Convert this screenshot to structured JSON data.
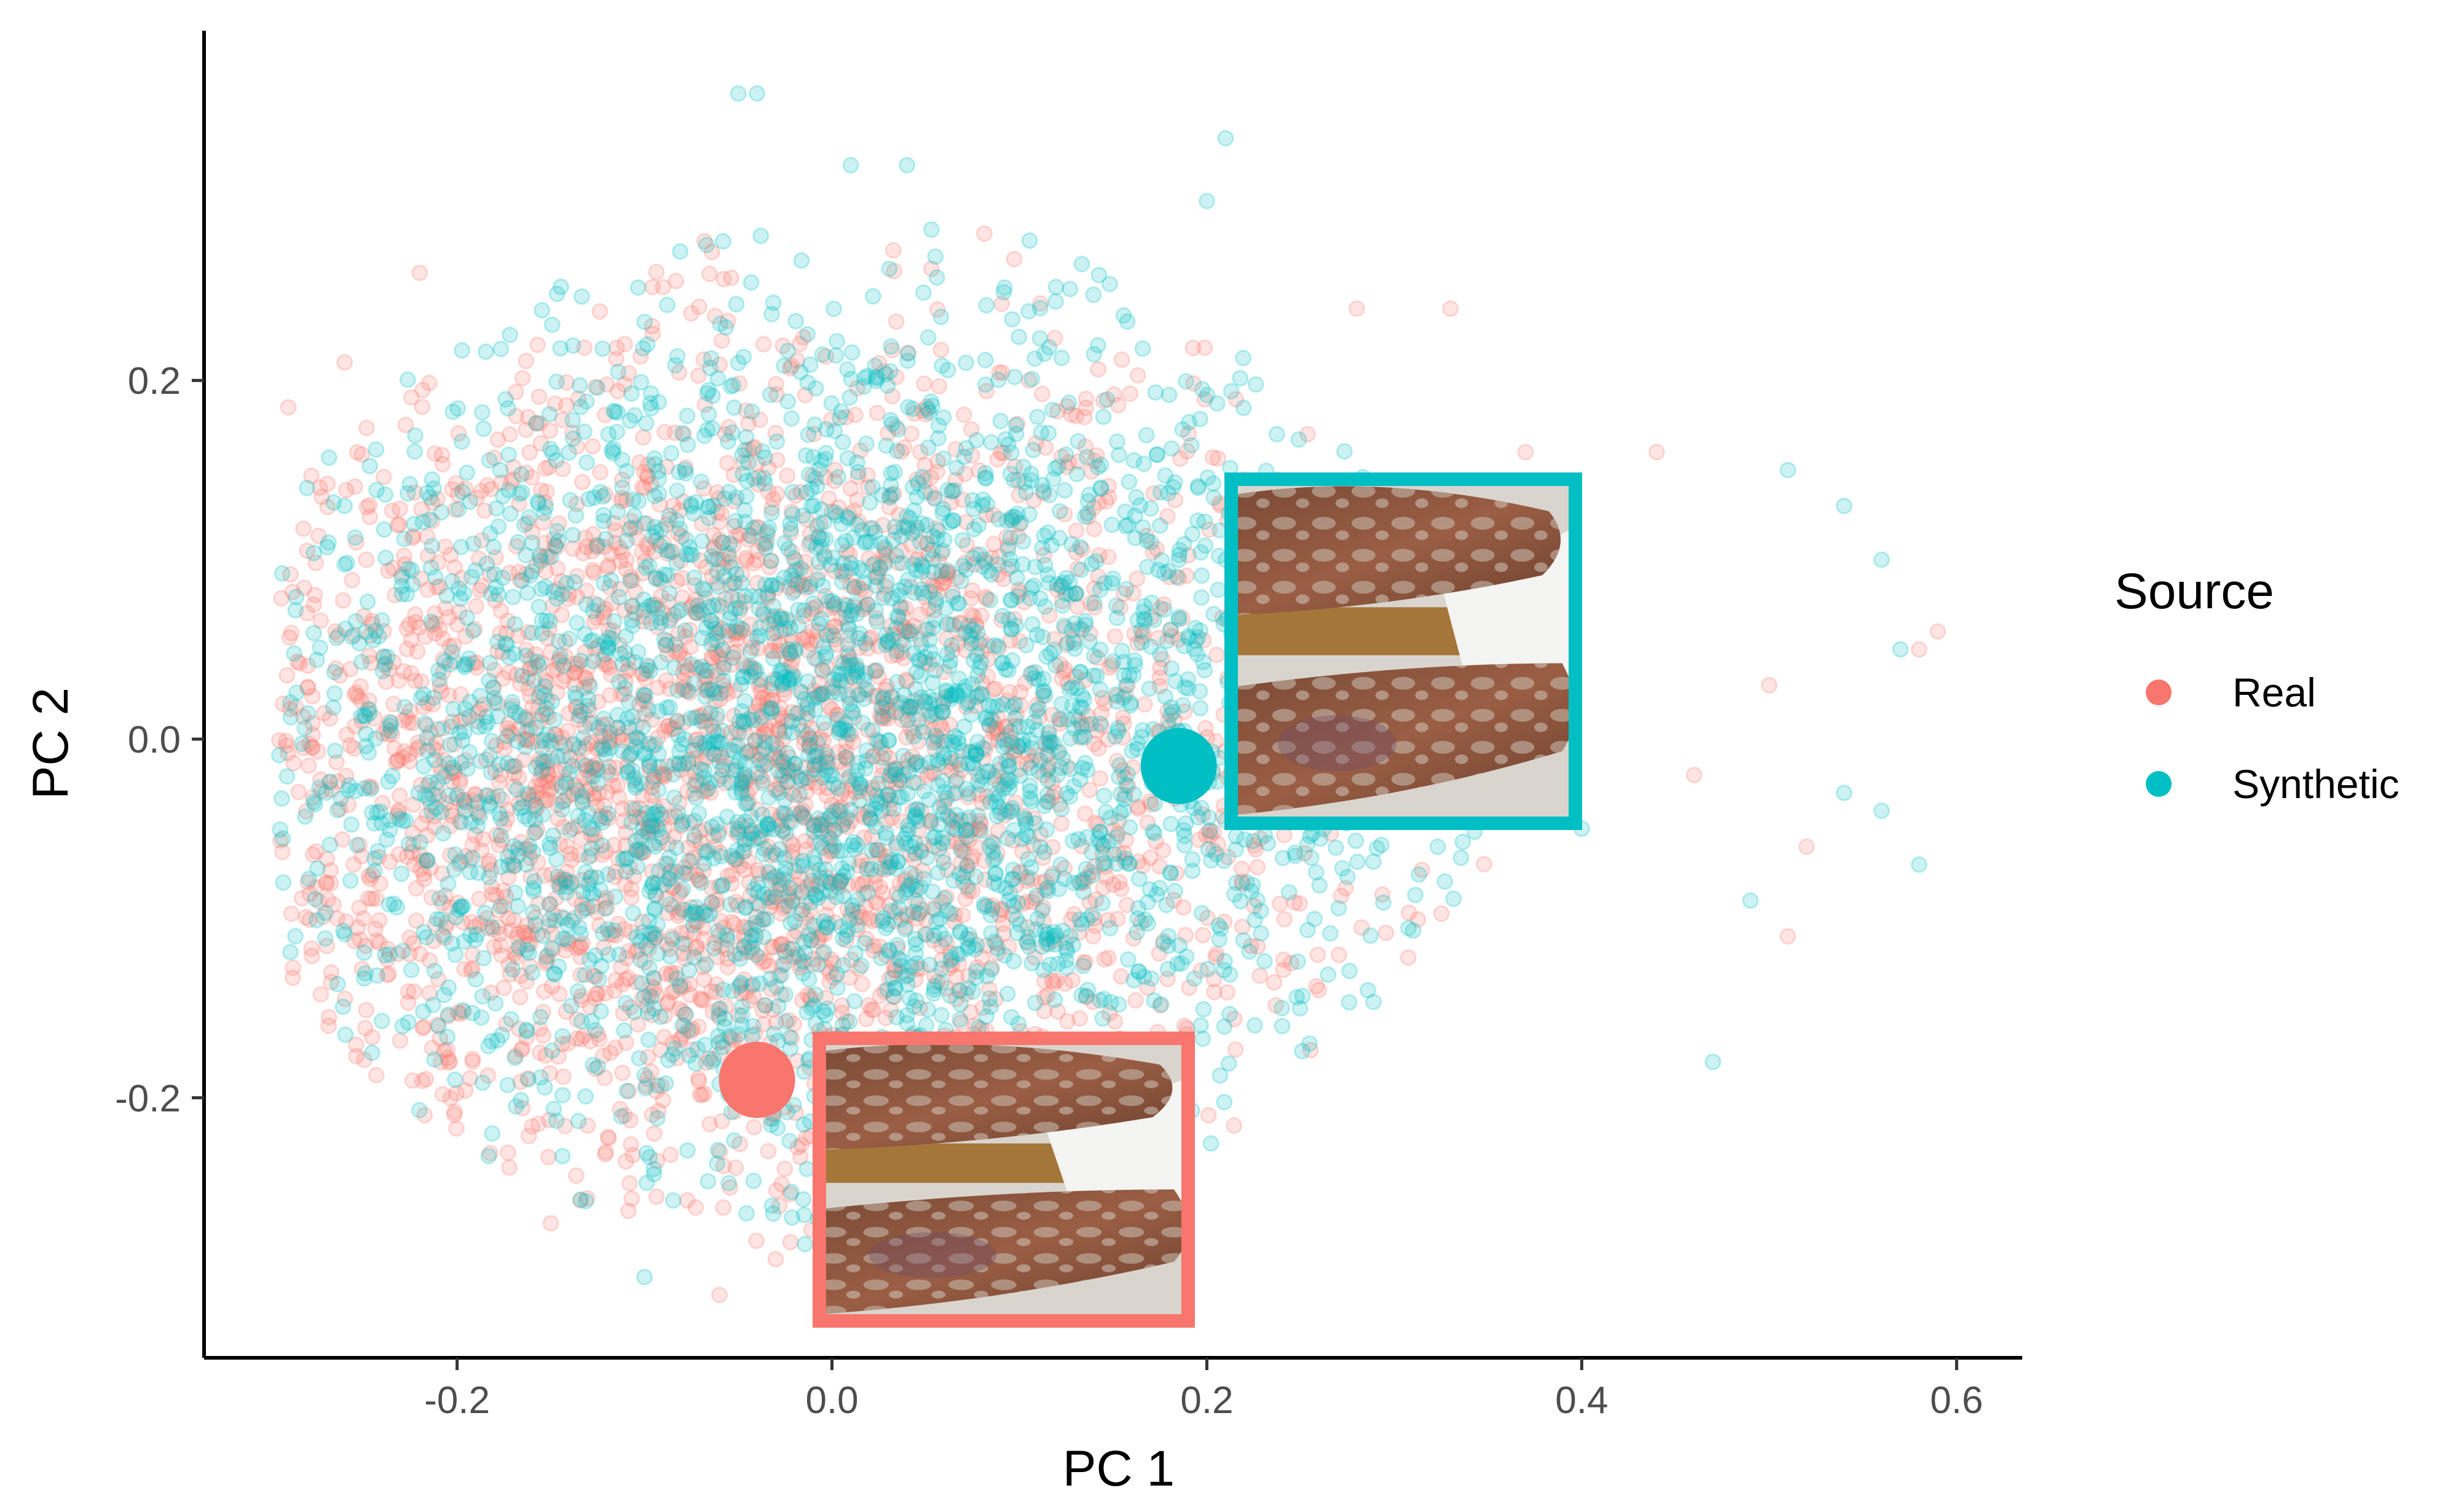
{
  "chart_data": {
    "type": "scatter",
    "title": "",
    "xlabel": "PC 1",
    "ylabel": "PC 2",
    "xlim": [
      -0.335,
      0.635
    ],
    "ylim": [
      -0.345,
      0.395
    ],
    "x_ticks": [
      -0.2,
      0.0,
      0.2,
      0.4,
      0.6
    ],
    "x_tick_labels": [
      "-0.2",
      "0.0",
      "0.2",
      "0.4",
      "0.6"
    ],
    "y_ticks": [
      -0.2,
      0.0,
      0.2
    ],
    "y_tick_labels": [
      "-0.2",
      "0.0",
      "0.2"
    ],
    "grid": false,
    "legend": {
      "title": "Source",
      "placement": "right",
      "entries": [
        {
          "label": "Real",
          "color": "#F8766D"
        },
        {
          "label": "Synthetic",
          "color": "#00BFC4"
        }
      ]
    },
    "series": [
      {
        "name": "Real",
        "color": "#F8766D",
        "point_alpha": 0.2,
        "n_points_approx": 3000,
        "distribution": {
          "center": [
            -0.05,
            -0.02
          ],
          "spread": [
            0.13,
            0.12
          ]
        },
        "points": [
          [
            -0.29,
            0.185
          ],
          [
            -0.28,
            0.105
          ],
          [
            -0.27,
            -0.08
          ],
          [
            -0.26,
            0.21
          ],
          [
            -0.25,
            -0.1
          ],
          [
            -0.22,
            0.26
          ],
          [
            -0.15,
            -0.27
          ],
          [
            -0.06,
            -0.31
          ],
          [
            -0.03,
            -0.29
          ],
          [
            0.12,
            -0.29
          ],
          [
            0.28,
            0.24
          ],
          [
            0.33,
            0.24
          ],
          [
            0.37,
            0.16
          ],
          [
            0.44,
            0.16
          ],
          [
            0.46,
            -0.02
          ],
          [
            0.5,
            0.03
          ],
          [
            0.51,
            -0.11
          ],
          [
            0.52,
            -0.06
          ],
          [
            0.58,
            0.05
          ],
          [
            0.59,
            0.06
          ],
          [
            0.01,
            -0.32
          ]
        ]
      },
      {
        "name": "Synthetic",
        "color": "#00BFC4",
        "point_alpha": 0.2,
        "n_points_approx": 3000,
        "distribution": {
          "center": [
            0.0,
            0.0
          ],
          "spread": [
            0.14,
            0.12
          ]
        },
        "points": [
          [
            -0.28,
            0.14
          ],
          [
            -0.27,
            -0.03
          ],
          [
            -0.26,
            0.13
          ],
          [
            -0.05,
            0.36
          ],
          [
            -0.04,
            0.36
          ],
          [
            0.01,
            0.32
          ],
          [
            0.04,
            0.32
          ],
          [
            0.21,
            0.335
          ],
          [
            0.2,
            0.3
          ],
          [
            0.51,
            0.15
          ],
          [
            0.54,
            0.13
          ],
          [
            0.56,
            0.1
          ],
          [
            0.57,
            0.05
          ],
          [
            0.58,
            -0.07
          ],
          [
            0.56,
            -0.04
          ],
          [
            0.54,
            -0.03
          ],
          [
            0.49,
            -0.09
          ],
          [
            0.47,
            -0.18
          ],
          [
            0.4,
            -0.05
          ],
          [
            -0.1,
            -0.3
          ],
          [
            0.06,
            -0.31
          ]
        ]
      }
    ],
    "highlights": [
      {
        "series": "Real",
        "x": -0.04,
        "y": -0.19,
        "color": "#F8766D",
        "inset": "photo of skin lesions on arms (real sample)"
      },
      {
        "series": "Synthetic",
        "x": 0.185,
        "y": -0.015,
        "color": "#00BFC4",
        "inset": "photo of skin lesions on arms (synthetic sample)"
      }
    ]
  }
}
